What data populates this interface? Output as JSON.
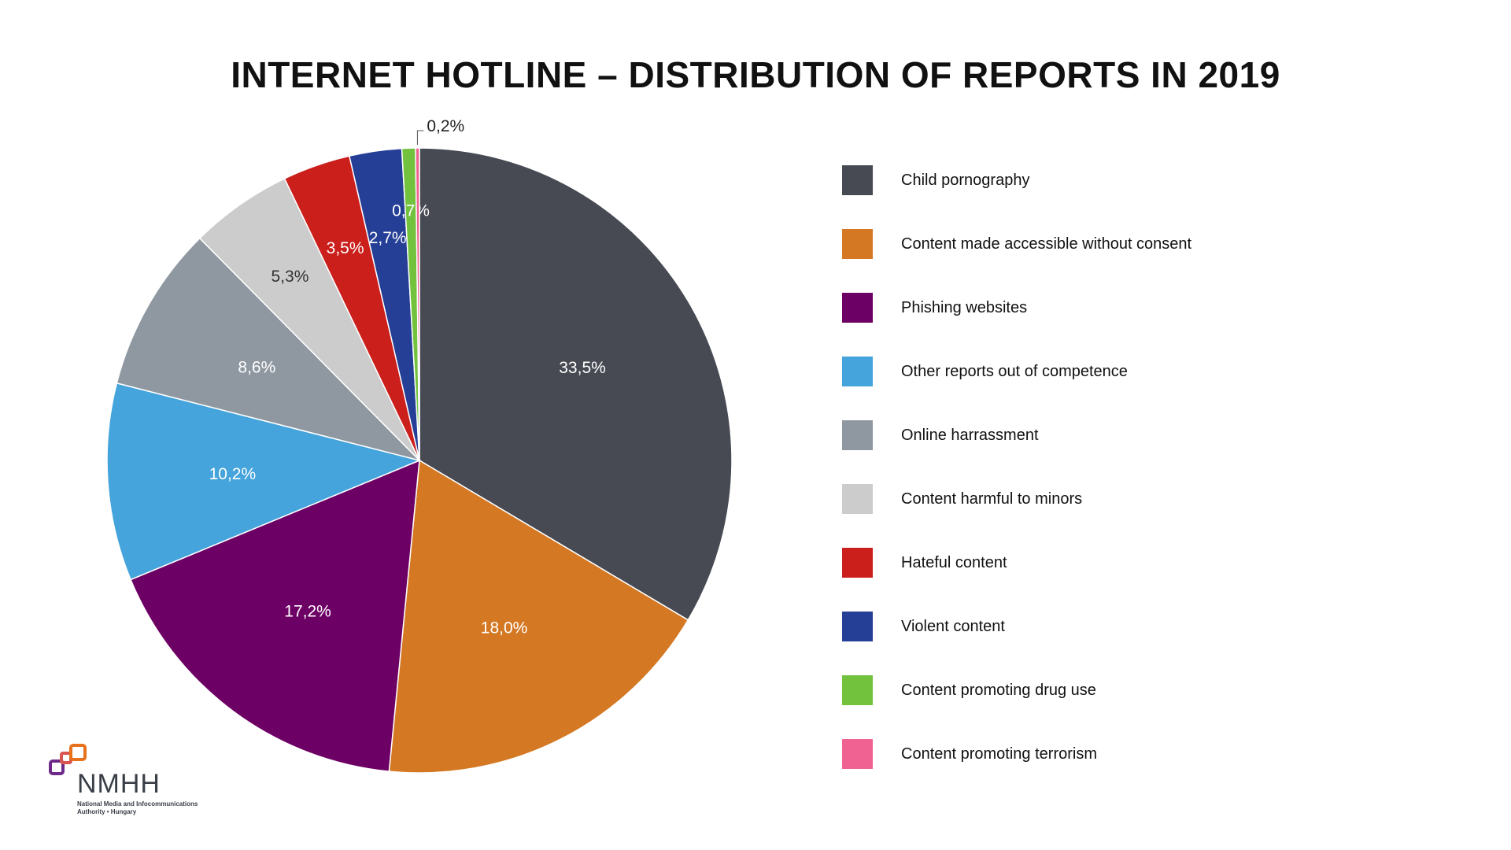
{
  "chart_data": {
    "type": "pie",
    "title": "INTERNET HOTLINE – DISTRIBUTION OF REPORTS IN 2019",
    "start_angle_deg": 0,
    "direction": "clockwise",
    "legend_position": "right",
    "slices": [
      {
        "name": "Child pornography",
        "value": 33.5,
        "label": "33,5%",
        "color": "#474a53"
      },
      {
        "name": "Content made accessible without consent",
        "value": 18.0,
        "label": "18,0%",
        "color": "#d47823"
      },
      {
        "name": "Phishing websites",
        "value": 17.2,
        "label": "17,2%",
        "color": "#6d0065"
      },
      {
        "name": "Other reports out of competence",
        "value": 10.2,
        "label": "10,2%",
        "color": "#45a4dc"
      },
      {
        "name": "Online harrassment",
        "value": 8.6,
        "label": "8,6%",
        "color": "#8f98a1"
      },
      {
        "name": "Content harmful to minors",
        "value": 5.3,
        "label": "5,3%",
        "color": "#cccccc"
      },
      {
        "name": "Hateful content",
        "value": 3.5,
        "label": "3,5%",
        "color": "#cb1f1c"
      },
      {
        "name": "Violent content",
        "value": 2.7,
        "label": "2,7%",
        "color": "#263f96"
      },
      {
        "name": "Content promoting drug use",
        "value": 0.7,
        "label": "0,7%",
        "color": "#72c23e"
      },
      {
        "name": "Content promoting terrorism",
        "value": 0.2,
        "label": "0,2%",
        "color": "#f06292"
      }
    ]
  },
  "logo": {
    "name": "NMHH",
    "subtitle_line1": "National Media and Infocommunications",
    "subtitle_line2": "Authority • Hungary"
  }
}
